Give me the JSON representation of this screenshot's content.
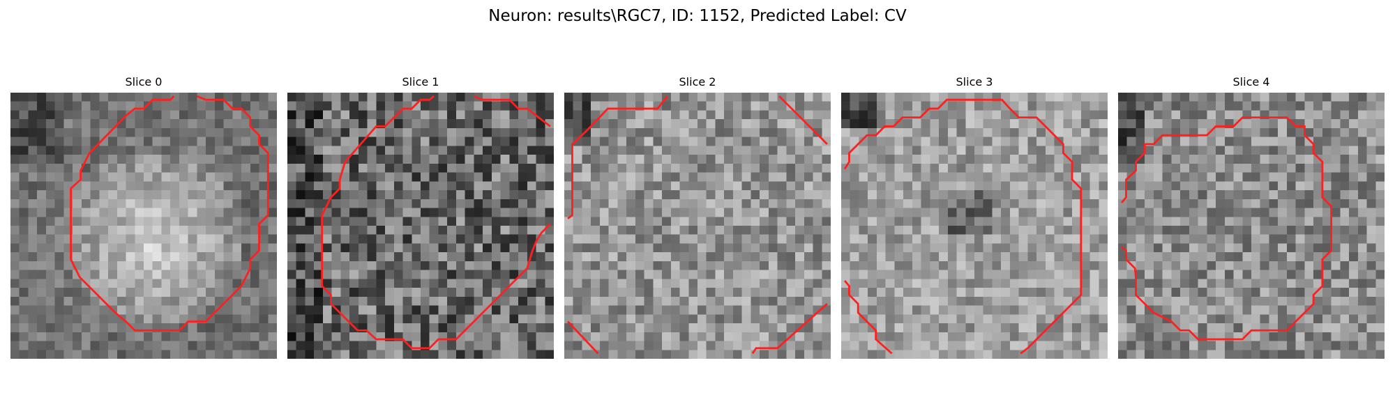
{
  "figure": {
    "title": "Neuron: results\\RGC7, ID: 1152, Predicted Label: CV"
  },
  "colors": {
    "background": "#ffffff",
    "contour": "#ff1f1f",
    "image_colormap": "gray"
  },
  "slices": [
    {
      "title": "Slice 0",
      "brightness": "bright-center",
      "seed": 11
    },
    {
      "title": "Slice 1",
      "brightness": "dark-noisy",
      "seed": 23
    },
    {
      "title": "Slice 2",
      "brightness": "mid-noisy",
      "seed": 37
    },
    {
      "title": "Slice 3",
      "brightness": "mid-light",
      "seed": 51
    },
    {
      "title": "Slice 4",
      "brightness": "mid-gray",
      "seed": 67
    }
  ]
}
